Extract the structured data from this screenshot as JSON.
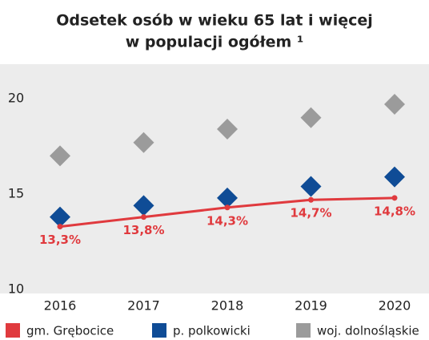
{
  "chart_data": {
    "type": "line",
    "title": [
      "Odsetek osób w wieku 65 lat i więcej",
      "w populacji ogółem ¹"
    ],
    "categories": [
      "2016",
      "2017",
      "2018",
      "2019",
      "2020"
    ],
    "ylim": [
      9.8,
      21.8
    ],
    "yticks": [
      10,
      15,
      20
    ],
    "series": [
      {
        "name": "gm. Grębocice",
        "color": "#e03a3e",
        "style": "line",
        "values": [
          13.3,
          13.8,
          14.3,
          14.7,
          14.8
        ],
        "value_labels": [
          "13,3%",
          "13,8%",
          "14,3%",
          "14,7%",
          "14,8%"
        ]
      },
      {
        "name": "p. polkowicki",
        "color": "#0f4c96",
        "style": "diamond",
        "values": [
          13.8,
          14.4,
          14.8,
          15.4,
          15.9
        ]
      },
      {
        "name": "woj. dolnośląskie",
        "color": "#9b9b9b",
        "style": "diamond",
        "values": [
          17.0,
          17.7,
          18.4,
          19.0,
          19.7
        ]
      }
    ]
  }
}
